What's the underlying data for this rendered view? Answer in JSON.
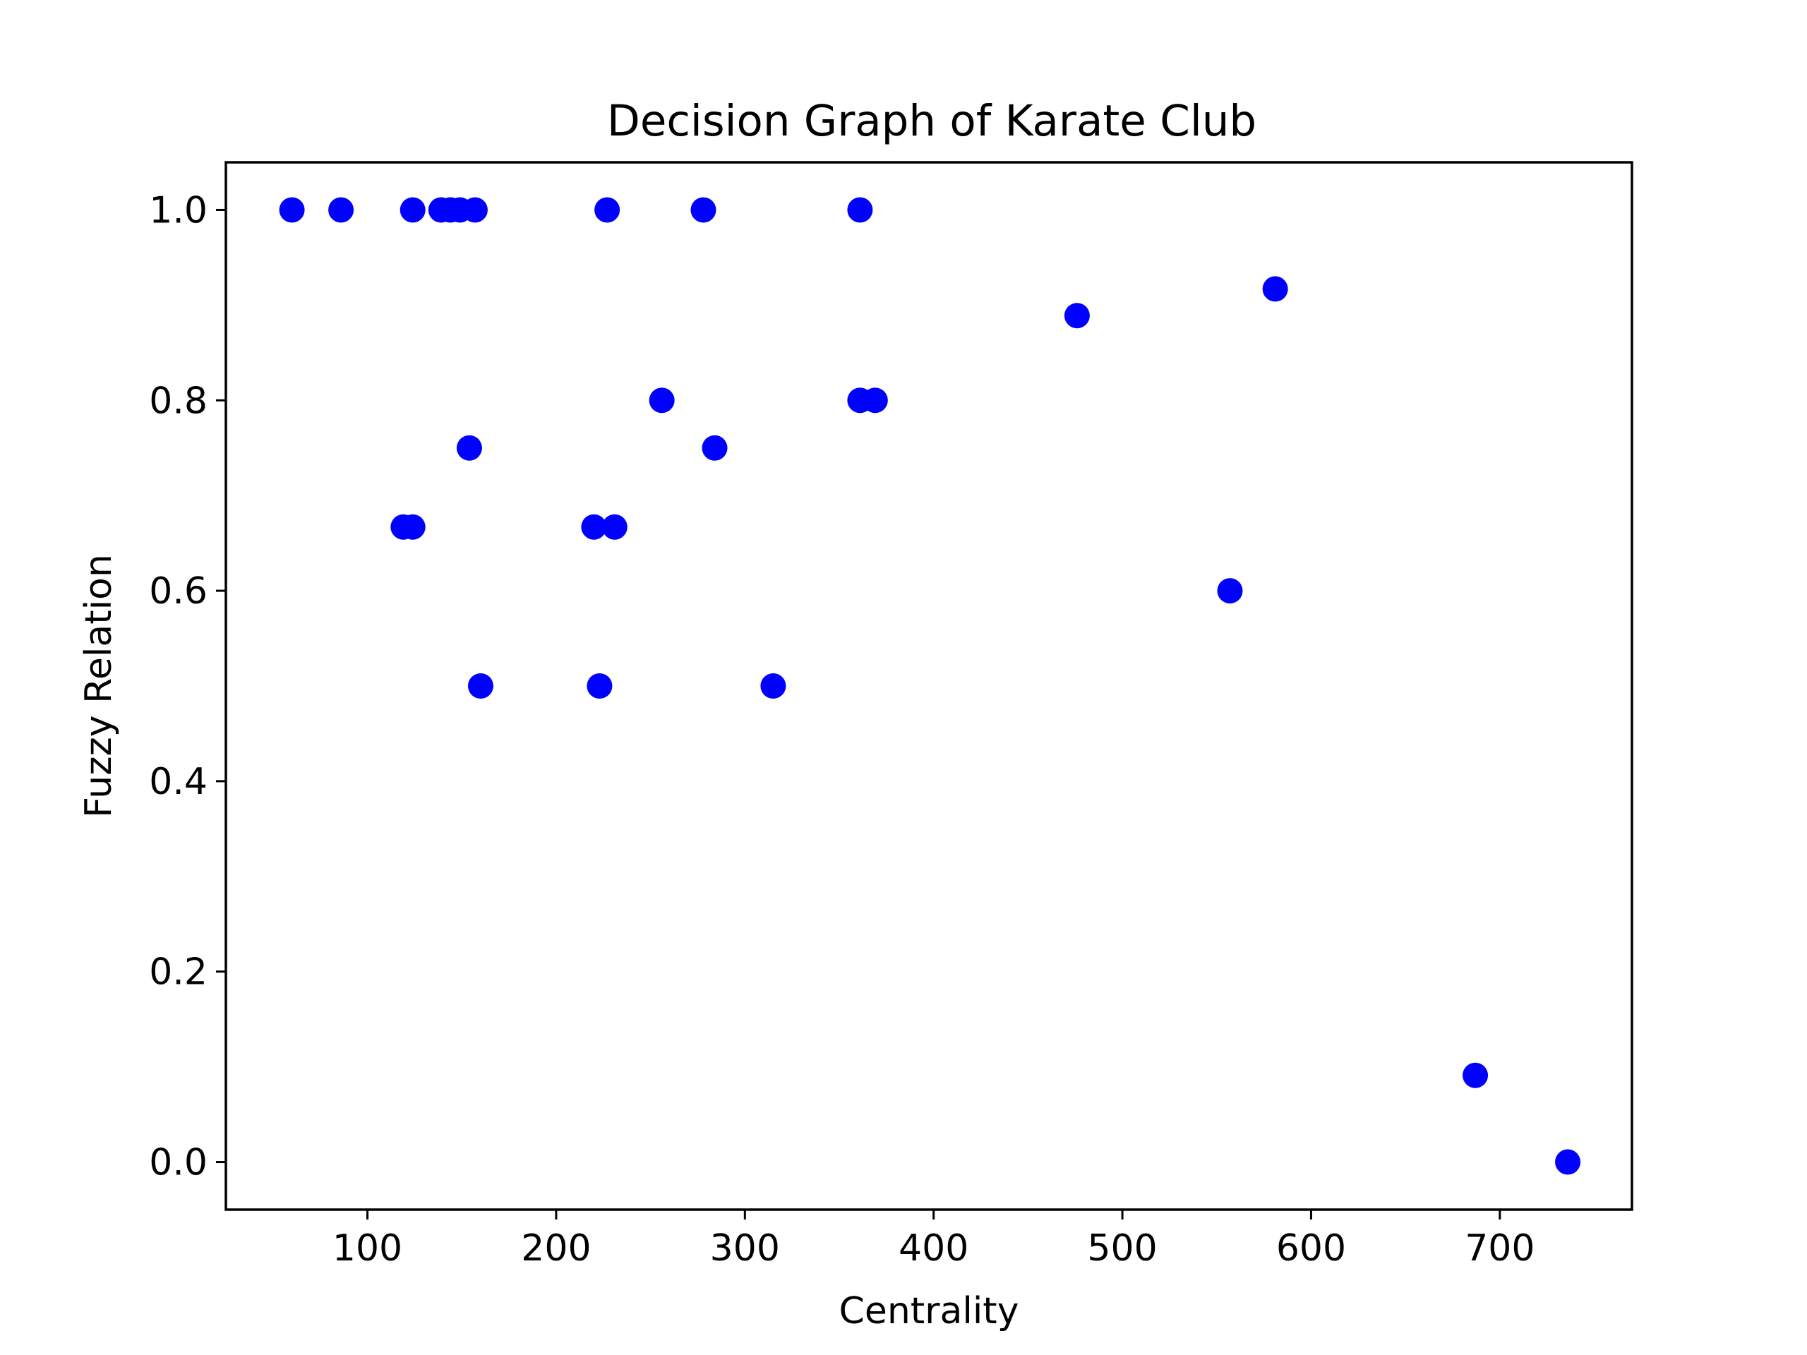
{
  "chart_data": {
    "type": "scatter",
    "title": "Decision Graph of Karate Club",
    "xlabel": "Centrality",
    "ylabel": "Fuzzy Relation",
    "xlim": [
      25,
      770
    ],
    "ylim": [
      -0.05,
      1.05
    ],
    "xticks": [
      100,
      200,
      300,
      400,
      500,
      600,
      700
    ],
    "yticks": [
      0.0,
      0.2,
      0.4,
      0.6,
      0.8,
      1.0
    ],
    "xtick_labels": [
      "100",
      "200",
      "300",
      "400",
      "500",
      "600",
      "700"
    ],
    "ytick_labels": [
      "0.0",
      "0.2",
      "0.4",
      "0.6",
      "0.8",
      "1.0"
    ],
    "grid": false,
    "marker_color": "#0000ff",
    "series": [
      {
        "points": [
          [
            60,
            1.0
          ],
          [
            86,
            1.0
          ],
          [
            124,
            1.0
          ],
          [
            139,
            1.0
          ],
          [
            144,
            1.0
          ],
          [
            149,
            1.0
          ],
          [
            157,
            1.0
          ],
          [
            227,
            1.0
          ],
          [
            278,
            1.0
          ],
          [
            361,
            1.0
          ],
          [
            581,
            0.917
          ],
          [
            476,
            0.889
          ],
          [
            256,
            0.8
          ],
          [
            361,
            0.8
          ],
          [
            369,
            0.8
          ],
          [
            154,
            0.75
          ],
          [
            284,
            0.75
          ],
          [
            119,
            0.667
          ],
          [
            124,
            0.667
          ],
          [
            220,
            0.667
          ],
          [
            231,
            0.667
          ],
          [
            557,
            0.6
          ],
          [
            160,
            0.5
          ],
          [
            223,
            0.5
          ],
          [
            315,
            0.5
          ],
          [
            687,
            0.091
          ],
          [
            736,
            0.0
          ]
        ]
      }
    ]
  }
}
